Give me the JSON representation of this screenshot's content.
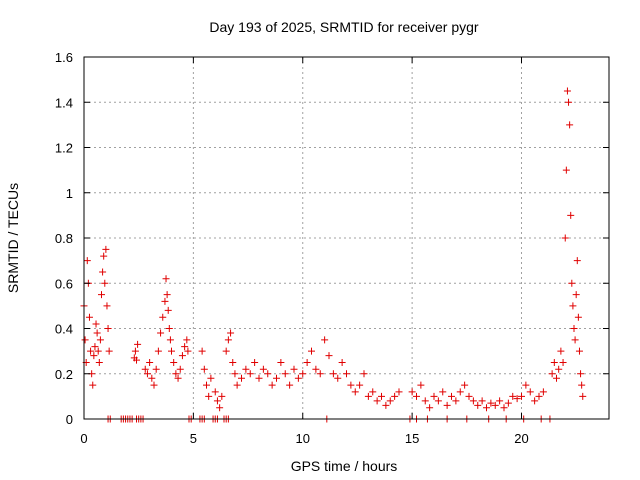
{
  "chart_data": {
    "type": "scatter",
    "title": "Day 193 of 2025, SRMTID for receiver pygr",
    "xlabel": "GPS time / hours",
    "ylabel": "SRMTID / TECUs",
    "xlim": [
      0,
      24
    ],
    "ylim": [
      0,
      1.6
    ],
    "xticks": [
      0,
      5,
      10,
      15,
      20
    ],
    "xtick_labels": [
      "0",
      "5",
      "10",
      "15",
      "20"
    ],
    "yticks": [
      0,
      0.2,
      0.4,
      0.6,
      0.8,
      1.0,
      1.2,
      1.4,
      1.6
    ],
    "ytick_labels": [
      "0",
      "0.2",
      "0.4",
      "0.6",
      "0.8",
      "1",
      "1.2",
      "1.4",
      "1.6"
    ],
    "grid": true,
    "marker": "+",
    "series": [
      {
        "name": "SRMTID",
        "color": "#e00000",
        "x": [
          0.0,
          0.05,
          0.1,
          0.15,
          0.2,
          0.25,
          0.3,
          0.35,
          0.4,
          0.45,
          0.5,
          0.55,
          0.6,
          0.65,
          0.7,
          0.75,
          0.8,
          0.85,
          0.9,
          0.95,
          1.0,
          1.05,
          1.1,
          1.15,
          1.1,
          1.2,
          1.7,
          1.8,
          1.9,
          2.0,
          2.1,
          2.2,
          2.4,
          2.5,
          2.6,
          2.7,
          2.3,
          2.35,
          2.4,
          2.45,
          2.8,
          2.9,
          3.0,
          3.1,
          3.2,
          3.3,
          3.4,
          3.5,
          3.6,
          3.7,
          3.75,
          3.8,
          3.85,
          3.9,
          3.95,
          4.0,
          4.1,
          4.2,
          4.3,
          4.4,
          4.5,
          4.6,
          4.7,
          4.75,
          4.8,
          4.9,
          5.3,
          5.4,
          5.5,
          5.9,
          6.0,
          6.1,
          6.4,
          6.5,
          6.6,
          5.4,
          5.5,
          5.6,
          5.7,
          5.8,
          6.0,
          6.1,
          6.2,
          6.3,
          6.5,
          6.6,
          6.7,
          6.8,
          6.9,
          7.0,
          7.2,
          7.4,
          7.6,
          7.8,
          8.0,
          8.2,
          8.4,
          8.6,
          8.8,
          9.0,
          9.2,
          9.4,
          9.6,
          9.8,
          10.0,
          10.2,
          10.4,
          10.6,
          10.8,
          11.0,
          11.2,
          11.4,
          11.6,
          11.8,
          12.0,
          12.2,
          12.4,
          12.6,
          12.8,
          13.0,
          13.2,
          13.4,
          13.6,
          13.8,
          14.0,
          14.2,
          14.4,
          11.1,
          14.9,
          15.2,
          15.0,
          15.2,
          15.4,
          15.6,
          15.8,
          16.0,
          16.2,
          16.4,
          16.6,
          16.8,
          17.0,
          17.2,
          17.4,
          17.6,
          17.8,
          18.0,
          18.2,
          18.4,
          18.6,
          18.8,
          19.0,
          19.2,
          19.4,
          19.6,
          19.8,
          15.7,
          16.6,
          17.5,
          18.5,
          19.3,
          20.1,
          20.9,
          21.3,
          20.0,
          20.2,
          20.4,
          20.6,
          20.8,
          21.0,
          21.4,
          21.5,
          21.6,
          21.7,
          21.8,
          21.9,
          22.0,
          22.05,
          22.1,
          22.15,
          22.2,
          22.25,
          22.3,
          22.35,
          22.4,
          22.45,
          22.5,
          22.55,
          22.6,
          22.65,
          22.7,
          22.75,
          22.8
        ],
        "y": [
          0.5,
          0.35,
          0.25,
          0.7,
          0.6,
          0.45,
          0.3,
          0.2,
          0.15,
          0.28,
          0.32,
          0.42,
          0.38,
          0.3,
          0.25,
          0.35,
          0.55,
          0.65,
          0.72,
          0.6,
          0.75,
          0.5,
          0.4,
          0.3,
          0.0,
          0.0,
          0.0,
          0.0,
          0.0,
          0.0,
          0.0,
          0.0,
          0.0,
          0.0,
          0.0,
          0.0,
          0.27,
          0.3,
          0.26,
          0.33,
          0.22,
          0.2,
          0.25,
          0.18,
          0.15,
          0.22,
          0.3,
          0.38,
          0.45,
          0.52,
          0.62,
          0.55,
          0.48,
          0.4,
          0.35,
          0.3,
          0.25,
          0.2,
          0.18,
          0.22,
          0.28,
          0.32,
          0.35,
          0.3,
          0.0,
          0.0,
          0.0,
          0.0,
          0.0,
          0.0,
          0.0,
          0.0,
          0.0,
          0.0,
          0.0,
          0.3,
          0.22,
          0.15,
          0.1,
          0.18,
          0.12,
          0.08,
          0.05,
          0.1,
          0.3,
          0.35,
          0.38,
          0.25,
          0.2,
          0.15,
          0.18,
          0.22,
          0.2,
          0.25,
          0.18,
          0.22,
          0.2,
          0.15,
          0.18,
          0.25,
          0.2,
          0.15,
          0.22,
          0.18,
          0.2,
          0.25,
          0.3,
          0.22,
          0.2,
          0.35,
          0.28,
          0.2,
          0.18,
          0.25,
          0.2,
          0.15,
          0.12,
          0.15,
          0.2,
          0.1,
          0.12,
          0.08,
          0.1,
          0.06,
          0.08,
          0.1,
          0.12,
          0.0,
          0.0,
          0.0,
          0.12,
          0.1,
          0.15,
          0.08,
          0.05,
          0.1,
          0.08,
          0.12,
          0.06,
          0.1,
          0.08,
          0.12,
          0.15,
          0.1,
          0.08,
          0.06,
          0.08,
          0.05,
          0.07,
          0.06,
          0.08,
          0.05,
          0.07,
          0.1,
          0.09,
          0.0,
          0.0,
          0.0,
          0.0,
          0.0,
          0.0,
          0.0,
          0.0,
          0.1,
          0.15,
          0.12,
          0.08,
          0.1,
          0.12,
          0.2,
          0.25,
          0.18,
          0.22,
          0.3,
          0.25,
          0.8,
          1.1,
          1.45,
          1.4,
          1.3,
          0.9,
          0.6,
          0.5,
          0.4,
          0.35,
          0.55,
          0.7,
          0.45,
          0.3,
          0.2,
          0.15,
          0.1
        ]
      }
    ]
  }
}
